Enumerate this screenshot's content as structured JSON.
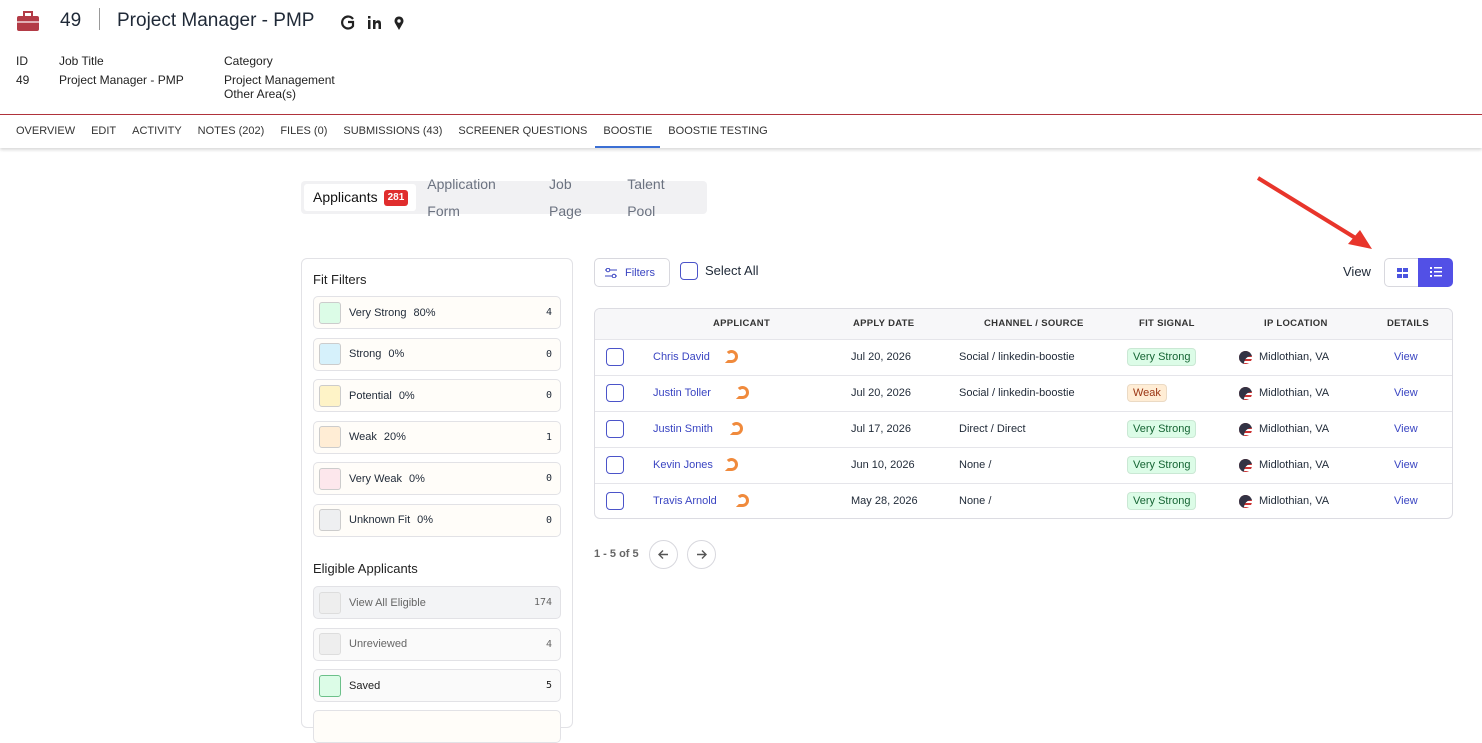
{
  "header": {
    "number": "49",
    "title": "Project Manager - PMP"
  },
  "details": [
    {
      "label": "ID",
      "values": [
        "49"
      ]
    },
    {
      "label": "Job Title",
      "values": [
        "Project Manager - PMP"
      ]
    },
    {
      "label": "Category",
      "values": [
        "Project Management",
        "Other Area(s)"
      ]
    }
  ],
  "tabs": [
    "OVERVIEW",
    "EDIT",
    "ACTIVITY",
    "NOTES (202)",
    "FILES (0)",
    "SUBMISSIONS (43)",
    "SCREENER QUESTIONS",
    "BOOSTIE",
    "BOOSTIE TESTING"
  ],
  "subtabs": {
    "applicants": "Applicants",
    "badge": 281,
    "others": [
      "Application Form",
      "Job Page",
      "Talent Pool"
    ]
  },
  "fit_filters": {
    "title": "Fit Filters",
    "items": [
      {
        "name": "Very Strong",
        "percent": "80%",
        "count": 4,
        "color": "#dcfce7"
      },
      {
        "name": "Strong",
        "percent": "0%",
        "count": 0,
        "color": "#d6f1fb"
      },
      {
        "name": "Potential",
        "percent": "0%",
        "count": 0,
        "color": "#fef3c7"
      },
      {
        "name": "Weak",
        "percent": "20%",
        "count": 1,
        "color": "#ffedd5"
      },
      {
        "name": "Very Weak",
        "percent": "0%",
        "count": 0,
        "color": "#fde7ec"
      },
      {
        "name": "Unknown Fit",
        "percent": "0%",
        "count": 0,
        "color": "#eeeff1"
      }
    ]
  },
  "eligible": {
    "title": "Eligible Applicants",
    "items": [
      {
        "name": "View All Eligible",
        "count": 174
      },
      {
        "name": "Unreviewed",
        "count": 4
      },
      {
        "name": "Saved",
        "count": 5
      }
    ]
  },
  "toolbar": {
    "filters": "Filters",
    "select_all": "Select All",
    "view": "View"
  },
  "table": {
    "columns": [
      "APPLICANT",
      "APPLY DATE",
      "CHANNEL / SOURCE",
      "FIT SIGNAL",
      "IP LOCATION",
      "DETAILS"
    ],
    "rows": [
      {
        "applicant": "Chris David",
        "date": "Jul 20, 2026",
        "channel": "Social / linkedin-boostie",
        "fit": "Very Strong",
        "fit_color": "#dcfce7",
        "fit_text": "#166534",
        "location": "Midlothian, VA",
        "details": "View"
      },
      {
        "applicant": "Justin Toller",
        "date": "Jul 20, 2026",
        "channel": "Social / linkedin-boostie",
        "fit": "Weak",
        "fit_color": "#ffedd5",
        "fit_text": "#9a3412",
        "location": "Midlothian, VA",
        "details": "View"
      },
      {
        "applicant": "Justin Smith",
        "date": "Jul 17, 2026",
        "channel": "Direct / Direct",
        "fit": "Very Strong",
        "fit_color": "#dcfce7",
        "fit_text": "#166534",
        "location": "Midlothian, VA",
        "details": "View"
      },
      {
        "applicant": "Kevin Jones",
        "date": "Jun 10, 2026",
        "channel": "None /",
        "fit": "Very Strong",
        "fit_color": "#dcfce7",
        "fit_text": "#166534",
        "location": "Midlothian, VA",
        "details": "View"
      },
      {
        "applicant": "Travis Arnold",
        "date": "May 28, 2026",
        "channel": "None /",
        "fit": "Very Strong",
        "fit_color": "#dcfce7",
        "fit_text": "#166534",
        "location": "Midlothian, VA",
        "details": "View"
      }
    ]
  },
  "pagination": "1 - 5 of 5"
}
